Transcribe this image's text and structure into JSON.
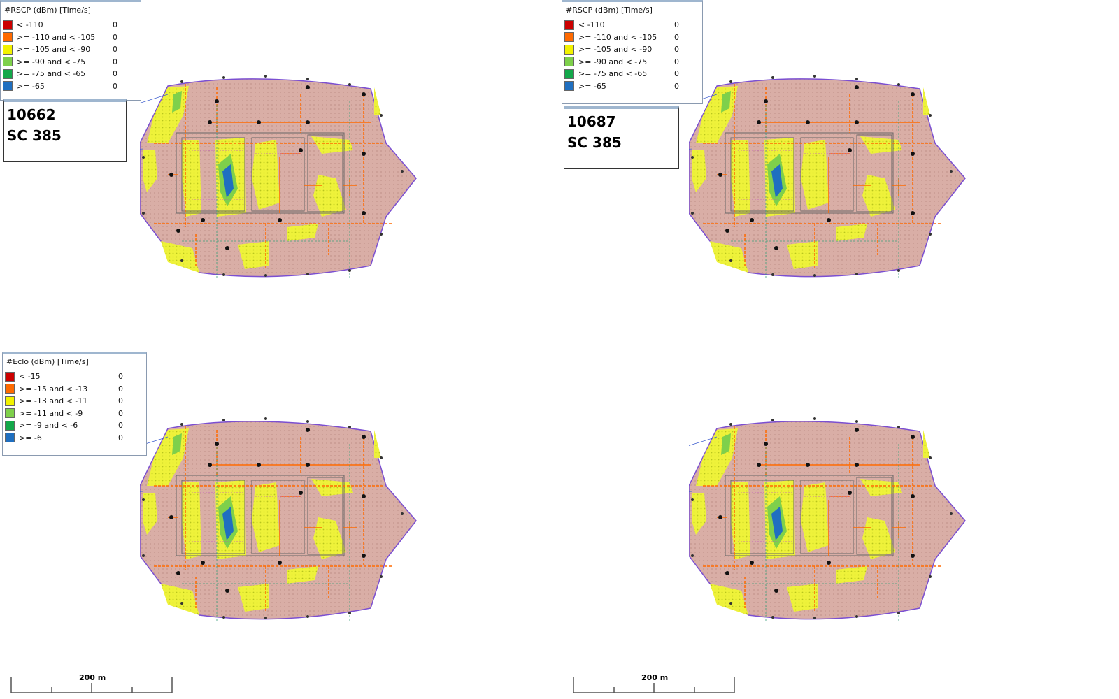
{
  "colors": {
    "floor": "#d9aea6",
    "wall_orange": "#ff6a00",
    "outline_purple": "#7b4fd1",
    "red": "#cc0000",
    "orange": "#ff6a00",
    "yellow": "#f2f200",
    "light_green": "#7ed04b",
    "green": "#12a84a",
    "blue": "#1f6fc0"
  },
  "maps": [
    {
      "id": "top-left",
      "legend": {
        "title": "#RSCP (dBm) [Time/s]",
        "rows": [
          {
            "label": "< -110",
            "count": "0",
            "color": "#cc0000"
          },
          {
            "label": ">= -110 and < -105",
            "count": "0",
            "color": "#ff6a00"
          },
          {
            "label": ">= -105 and < -90",
            "count": "0",
            "color": "#f2f200"
          },
          {
            "label": ">= -90 and < -75",
            "count": "0",
            "color": "#7ed04b"
          },
          {
            "label": ">= -75 and < -65",
            "count": "0",
            "color": "#12a84a"
          },
          {
            "label": ">= -65",
            "count": "0",
            "color": "#1f6fc0"
          }
        ]
      },
      "info": {
        "line1": "10662",
        "line2": "SC 385"
      }
    },
    {
      "id": "top-right",
      "legend": {
        "title": "#RSCP (dBm) [Time/s]",
        "rows": [
          {
            "label": "< -110",
            "count": "0",
            "color": "#cc0000"
          },
          {
            "label": ">= -110 and < -105",
            "count": "0",
            "color": "#ff6a00"
          },
          {
            "label": ">= -105 and < -90",
            "count": "0",
            "color": "#f2f200"
          },
          {
            "label": ">= -90 and < -75",
            "count": "0",
            "color": "#7ed04b"
          },
          {
            "label": ">= -75 and < -65",
            "count": "0",
            "color": "#12a84a"
          },
          {
            "label": ">= -65",
            "count": "0",
            "color": "#1f6fc0"
          }
        ]
      },
      "info": {
        "line1": "10687",
        "line2": "SC 385"
      }
    },
    {
      "id": "bottom-left",
      "legend": {
        "title": "#Eclo (dBm) [Time/s]",
        "rows": [
          {
            "label": "< -15",
            "count": "0",
            "color": "#cc0000"
          },
          {
            "label": ">= -15 and < -13",
            "count": "0",
            "color": "#ff6a00"
          },
          {
            "label": ">= -13 and < -11",
            "count": "0",
            "color": "#f2f200"
          },
          {
            "label": ">= -11 and < -9",
            "count": "0",
            "color": "#7ed04b"
          },
          {
            "label": ">= -9 and < -6",
            "count": "0",
            "color": "#12a84a"
          },
          {
            "label": ">= -6",
            "count": "0",
            "color": "#1f6fc0"
          }
        ]
      }
    },
    {
      "id": "bottom-right"
    }
  ],
  "scale_bars": [
    {
      "label": "200 m"
    },
    {
      "label": "200 m"
    }
  ]
}
